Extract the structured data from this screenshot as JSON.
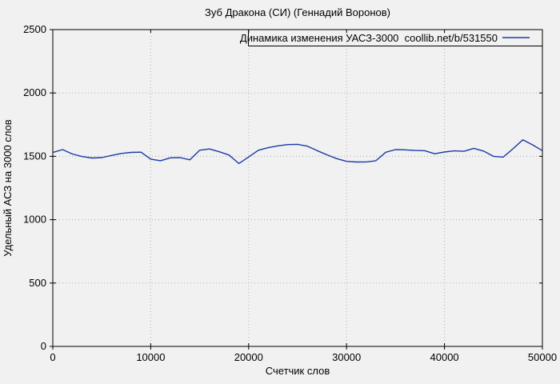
{
  "page": {
    "background_color": "#f1f1f1"
  },
  "chart_data": {
    "type": "line",
    "title": "Зуб Дракона (СИ) (Геннадий Воронов)",
    "xlabel": "Счетчик слов",
    "ylabel": "Удельный АСЗ на 3000 слов",
    "xlim": [
      0,
      50000
    ],
    "ylim": [
      0,
      2500
    ],
    "xticks": [
      0,
      10000,
      20000,
      30000,
      40000,
      50000
    ],
    "yticks": [
      0,
      500,
      1000,
      1500,
      2000,
      2500
    ],
    "grid": true,
    "grid_style": "dotted",
    "legend": {
      "label": "Динамика изменения УАСЗ-3000  coollib.net/b/531550",
      "position": "top-right-inside-box"
    },
    "colors": {
      "line": "#1a3aa8",
      "grid": "#b0b0b0",
      "axis": "#000000",
      "background": "#f1f1f1"
    },
    "series": [
      {
        "name": "Динамика изменения УАСЗ-3000  coollib.net/b/531550",
        "x_start": 0,
        "x_step": 1000,
        "values": [
          1530,
          1553,
          1518,
          1498,
          1487,
          1490,
          1507,
          1523,
          1531,
          1533,
          1478,
          1465,
          1488,
          1490,
          1472,
          1548,
          1558,
          1536,
          1510,
          1443,
          1495,
          1548,
          1568,
          1583,
          1593,
          1595,
          1580,
          1545,
          1512,
          1482,
          1460,
          1455,
          1456,
          1465,
          1532,
          1553,
          1551,
          1546,
          1544,
          1520,
          1534,
          1543,
          1540,
          1563,
          1541,
          1500,
          1494,
          1560,
          1630,
          1590,
          1545
        ]
      }
    ]
  }
}
